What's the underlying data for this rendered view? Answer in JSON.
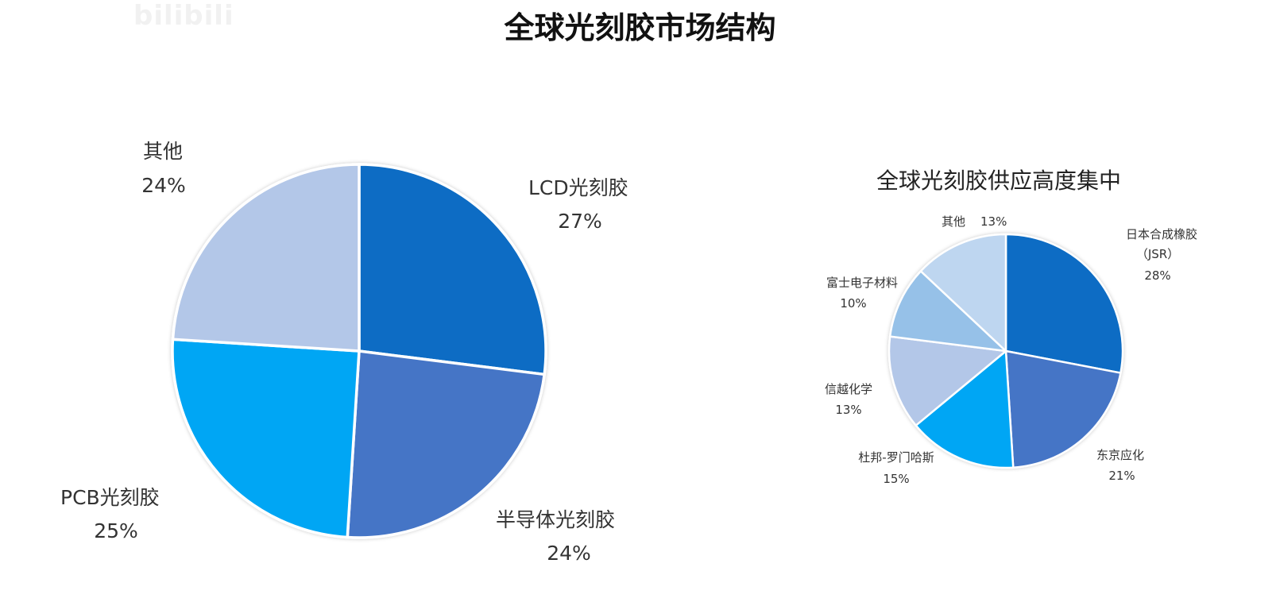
{
  "watermark": "bilibili",
  "page_title": "全球光刻胶市场结构",
  "chart_data": [
    {
      "type": "pie",
      "title": "",
      "slices": [
        {
          "label": "LCD光刻胶",
          "pct_label": "27%",
          "value": 27,
          "color": "#0a6cc4"
        },
        {
          "label": "半导体光刻胶",
          "pct_label": "24%",
          "value": 24,
          "color": "#4474c6"
        },
        {
          "label": "PCB光刻胶",
          "pct_label": "25%",
          "value": 25,
          "color": "#04a6f4"
        },
        {
          "label": "其他",
          "pct_label": "24%",
          "value": 24,
          "color": "#b3c7e8"
        }
      ],
      "start_angle_deg": 0,
      "direction": "clockwise",
      "legend": "none"
    },
    {
      "type": "pie",
      "title": "全球光刻胶供应高度集中",
      "slices": [
        {
          "label": "日本合成橡胶（JSR）",
          "label_lines": [
            "日本合成橡胶",
            "（JSR）"
          ],
          "pct_label": "28%",
          "value": 28,
          "color": "#0a6cc4"
        },
        {
          "label": "东京应化",
          "label_lines": [
            "东京应化"
          ],
          "pct_label": "21%",
          "value": 21,
          "color": "#4474c6"
        },
        {
          "label": "杜邦-罗门哈斯",
          "label_lines": [
            "杜邦-罗门哈斯"
          ],
          "pct_label": "15%",
          "value": 15,
          "color": "#04a6f4"
        },
        {
          "label": "信越化学",
          "label_lines": [
            "信越化学"
          ],
          "pct_label": "13%",
          "value": 13,
          "color": "#b3c7e8"
        },
        {
          "label": "富士电子材料",
          "label_lines": [
            "富士电子材料"
          ],
          "pct_label": "10%",
          "value": 10,
          "color": "#96c1e8"
        },
        {
          "label": "其他",
          "label_lines": [
            "其他"
          ],
          "pct_label": "13%",
          "value": 13,
          "color": "#bed6f0"
        }
      ],
      "start_angle_deg": 0,
      "direction": "clockwise",
      "legend": "none"
    }
  ]
}
